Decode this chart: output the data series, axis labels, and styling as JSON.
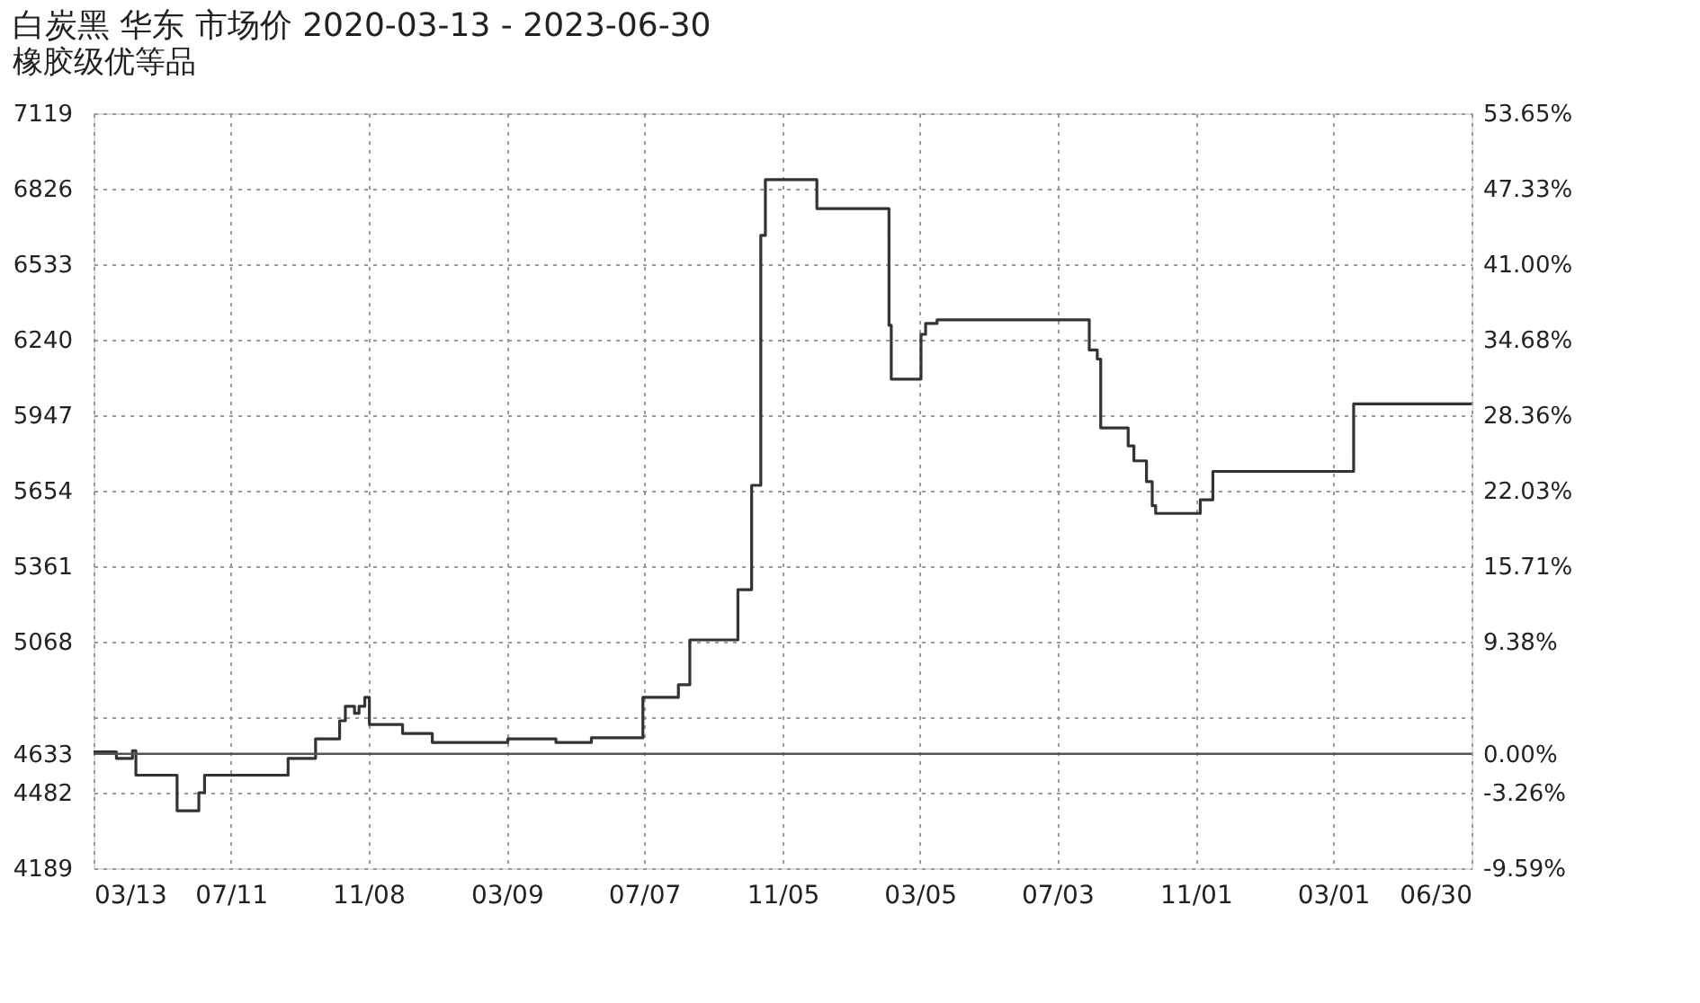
{
  "chart_data": {
    "type": "step",
    "title": "白炭黑 华东 市场价 2020-03-13 - 2023-06-30",
    "subtitle": "橡胶级优等品",
    "x": [
      "2020-03-13",
      "2020-04-02",
      "2020-04-16",
      "2020-04-19",
      "2020-05-25",
      "2020-06-13",
      "2020-06-18",
      "2020-08-30",
      "2020-09-23",
      "2020-10-14",
      "2020-10-19",
      "2020-10-27",
      "2020-10-31",
      "2020-11-05",
      "2020-11-09",
      "2020-12-08",
      "2021-01-03",
      "2021-03-10",
      "2021-04-21",
      "2021-05-22",
      "2021-07-06",
      "2021-08-06",
      "2021-08-16",
      "2021-09-27",
      "2021-10-09",
      "2021-10-17",
      "2021-10-21",
      "2021-12-05",
      "2022-02-06",
      "2022-02-08",
      "2022-03-06",
      "2022-03-10",
      "2022-03-20",
      "2022-07-31",
      "2022-08-07",
      "2022-08-10",
      "2022-09-03",
      "2022-09-08",
      "2022-09-19",
      "2022-09-24",
      "2022-09-27",
      "2022-11-05",
      "2022-11-16",
      "2023-03-19",
      "2023-06-30"
    ],
    "series": [
      {
        "color": "#333333",
        "values": [
          4640,
          4615,
          4645,
          4550,
          4412,
          4482,
          4550,
          4615,
          4691,
          4761,
          4817,
          4790,
          4817,
          4852,
          4747,
          4712,
          4677,
          4691,
          4677,
          4695,
          4852,
          4901,
          5075,
          5270,
          5675,
          6645,
          6861,
          6749,
          6296,
          6087,
          6261,
          6303,
          6317,
          6200,
          6165,
          5898,
          5828,
          5770,
          5689,
          5596,
          5566,
          5619,
          5729,
          5991,
          5991
        ]
      }
    ],
    "xlim": [
      "2020-03-13",
      "2023-06-30"
    ],
    "xticks": [
      {
        "value": "2020-03-13",
        "label": "03/13"
      },
      {
        "value": "2020-07-11",
        "label": "07/11"
      },
      {
        "value": "2020-11-08",
        "label": "11/08"
      },
      {
        "value": "2021-03-09",
        "label": "03/09"
      },
      {
        "value": "2021-07-07",
        "label": "07/07"
      },
      {
        "value": "2021-11-05",
        "label": "11/05"
      },
      {
        "value": "2022-03-05",
        "label": "03/05"
      },
      {
        "value": "2022-07-03",
        "label": "07/03"
      },
      {
        "value": "2022-11-01",
        "label": "11/01"
      },
      {
        "value": "2023-03-01",
        "label": "03/01"
      },
      {
        "value": "2023-06-30",
        "label": "06/30"
      }
    ],
    "ylim": [
      4189,
      7119
    ],
    "yticks": [
      4189,
      4482,
      4633,
      {
        "value": 4775,
        "label": null
      },
      5068,
      5361,
      5654,
      5947,
      6240,
      6533,
      6826,
      7119
    ],
    "y2lim": [
      -9.59,
      53.65
    ],
    "y2ticks": [
      {
        "value": -9.59,
        "label": "-9.59%"
      },
      {
        "value": -3.26,
        "label": "-3.26%"
      },
      {
        "value": 0,
        "label": "0.00%"
      },
      {
        "value": 9.38,
        "label": "9.38%"
      },
      {
        "value": 15.71,
        "label": "15.71%"
      },
      {
        "value": 22.03,
        "label": "22.03%"
      },
      {
        "value": 28.36,
        "label": "28.36%"
      },
      {
        "value": 34.68,
        "label": "34.68%"
      },
      {
        "value": 41.0,
        "label": "41.00%"
      },
      {
        "value": 47.33,
        "label": "47.33%"
      },
      {
        "value": 53.65,
        "label": "53.65%"
      }
    ],
    "ref_lines": [
      {
        "axis": "y",
        "value": 4633,
        "color": "#555555",
        "line_style": "solid"
      }
    ],
    "grid": true,
    "line_style": "solid",
    "marker": "none"
  }
}
